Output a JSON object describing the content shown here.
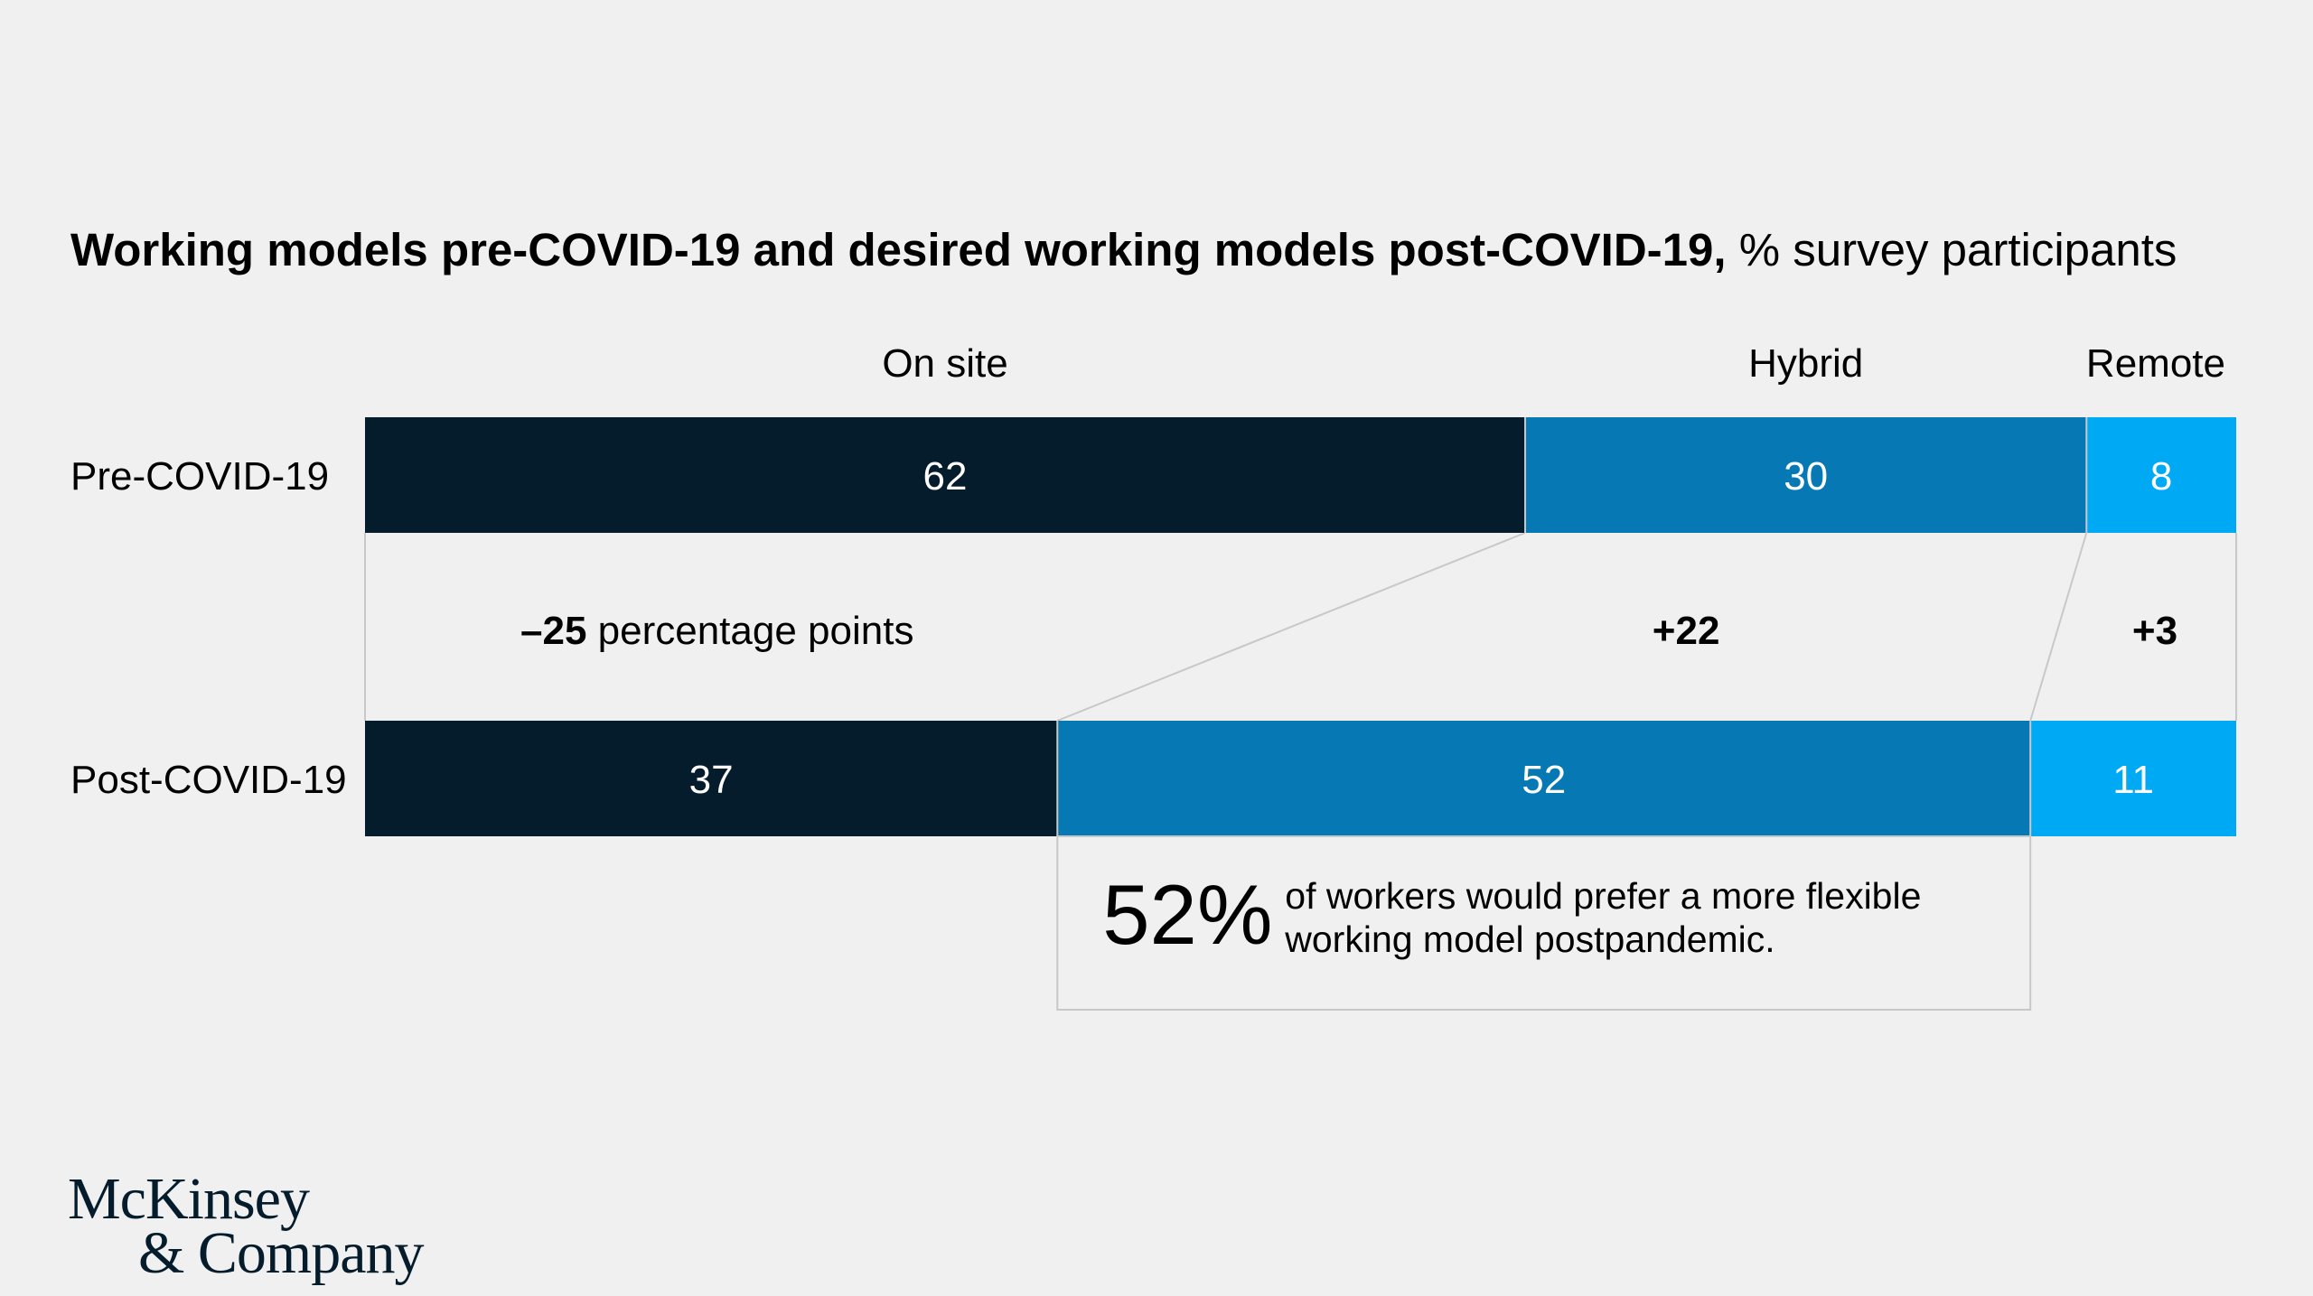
{
  "title": {
    "bold": "Working models pre-COVID-19 and desired working models post-COVID-19,",
    "unit": "% survey participants"
  },
  "chart_data": {
    "type": "bar",
    "orientation": "horizontal",
    "stacked": true,
    "categories": [
      "Pre-COVID-19",
      "Post-COVID-19"
    ],
    "series": [
      {
        "name": "On site",
        "values": [
          62,
          37
        ],
        "color": "#051c2c",
        "change_value": "–25",
        "change_suffix": "percentage points"
      },
      {
        "name": "Hybrid",
        "values": [
          30,
          52
        ],
        "color": "#0679b4",
        "change_value": "+22",
        "change_suffix": ""
      },
      {
        "name": "Remote",
        "values": [
          8,
          11
        ],
        "color": "#00a9f4",
        "change_value": "+3",
        "change_suffix": ""
      }
    ],
    "xlim": [
      0,
      100
    ],
    "legend": "top",
    "grid": false
  },
  "callout": {
    "value": "52%",
    "text_line1": "of workers would prefer a more flexible",
    "text_line2": "working model postpandemic."
  },
  "logo": {
    "line1": "McKinsey",
    "line2": "& Company"
  },
  "colors": {
    "background": "#f0f0f0",
    "label_light": "#ffffff",
    "connector": "#c8c8c8"
  }
}
